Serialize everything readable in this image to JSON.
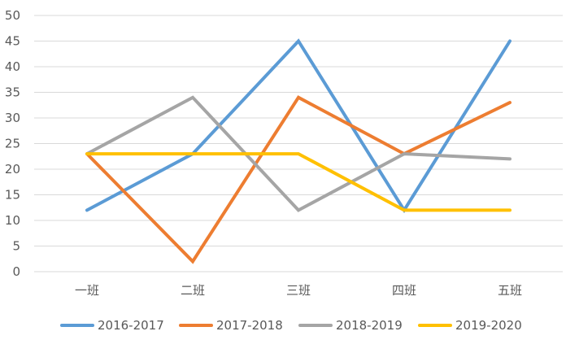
{
  "chart_data": {
    "type": "line",
    "title": "",
    "xlabel": "",
    "ylabel": "",
    "categories": [
      "一班",
      "二班",
      "三班",
      "四班",
      "五班"
    ],
    "ylim": [
      0,
      50
    ],
    "yticks": [
      0,
      5,
      10,
      15,
      20,
      25,
      30,
      35,
      40,
      45,
      50
    ],
    "grid": true,
    "legend_position": "bottom",
    "series": [
      {
        "name": "2016-2017",
        "color": "#5B9BD5",
        "values": [
          12,
          23,
          45,
          12,
          45
        ]
      },
      {
        "name": "2017-2018",
        "color": "#ED7D31",
        "values": [
          23,
          2,
          34,
          23,
          33
        ]
      },
      {
        "name": "2018-2019",
        "color": "#A5A5A5",
        "values": [
          23,
          34,
          12,
          23,
          22
        ]
      },
      {
        "name": "2019-2020",
        "color": "#FFC000",
        "values": [
          23,
          23,
          23,
          12,
          12
        ]
      }
    ]
  }
}
